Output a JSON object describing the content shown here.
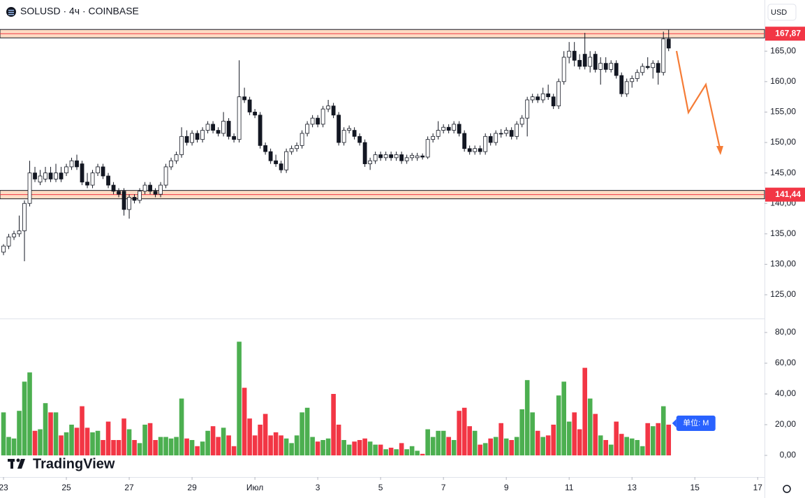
{
  "chart_data": {
    "type": "candlestick",
    "title": "SOLUSD · 4ч · COINBASE",
    "currency": "USD",
    "up_fill": "#ffffff",
    "down_fill": "#131722",
    "outline": "#131722",
    "volume_up_color": "#4caf50",
    "volume_down_color": "#f23645",
    "ohlc": [
      [
        132,
        133.3,
        131.5,
        133
      ],
      [
        133,
        135,
        132.5,
        134.5
      ],
      [
        134.5,
        135.5,
        134,
        135
      ],
      [
        135,
        138,
        134.5,
        135.5
      ],
      [
        135.5,
        140.5,
        130.5,
        140
      ],
      [
        140,
        147,
        139.5,
        145
      ],
      [
        145,
        146,
        143.5,
        144
      ],
      [
        143.5,
        145.5,
        143,
        144.5
      ],
      [
        144,
        146,
        143.5,
        145
      ],
      [
        145,
        146,
        143.5,
        144
      ],
      [
        144,
        146.5,
        143.5,
        145
      ],
      [
        145,
        146,
        143.5,
        144
      ],
      [
        145,
        146.5,
        144.5,
        146
      ],
      [
        146,
        147.5,
        145.5,
        147
      ],
      [
        147,
        148,
        145.5,
        146
      ],
      [
        146.5,
        147,
        143,
        143.5
      ],
      [
        143.5,
        145,
        142.5,
        143
      ],
      [
        143,
        145.5,
        142.5,
        145
      ],
      [
        145,
        146.5,
        144.5,
        146
      ],
      [
        146,
        146.5,
        144,
        144.5
      ],
      [
        144.5,
        145,
        142.5,
        143
      ],
      [
        143,
        143.5,
        141.5,
        142
      ],
      [
        142,
        142.5,
        141,
        141.5
      ],
      [
        142,
        142.5,
        138,
        139
      ],
      [
        139,
        141.5,
        137.5,
        141
      ],
      [
        141,
        141.5,
        140,
        140.5
      ],
      [
        140.5,
        142.5,
        140,
        142
      ],
      [
        142,
        143.5,
        141.5,
        143
      ],
      [
        143,
        143.5,
        141.5,
        142
      ],
      [
        142,
        142.5,
        141,
        141.5
      ],
      [
        141.5,
        143.5,
        141,
        143
      ],
      [
        143,
        146.5,
        142.5,
        146
      ],
      [
        146,
        147.5,
        145.5,
        147
      ],
      [
        147,
        148.5,
        146.5,
        148
      ],
      [
        148,
        152.5,
        147.5,
        151
      ],
      [
        151,
        152,
        149.5,
        150
      ],
      [
        150,
        152,
        149.5,
        151.5
      ],
      [
        151.5,
        152,
        150,
        150.5
      ],
      [
        150.5,
        152.5,
        150,
        152
      ],
      [
        152,
        153.5,
        151.5,
        153
      ],
      [
        153,
        153.5,
        151.5,
        152
      ],
      [
        152,
        152.5,
        151,
        151.5
      ],
      [
        151.5,
        155,
        151,
        153.5
      ],
      [
        153.5,
        154,
        150.5,
        151
      ],
      [
        151,
        151.5,
        150,
        150.5
      ],
      [
        150.5,
        163.5,
        150,
        157.5
      ],
      [
        157.5,
        159,
        156.5,
        157
      ],
      [
        157,
        157.5,
        154.5,
        155
      ],
      [
        155,
        155.5,
        154,
        154.5
      ],
      [
        154.5,
        155,
        149,
        149.5
      ],
      [
        149.5,
        150,
        148,
        148.5
      ],
      [
        148.5,
        149,
        146.5,
        147
      ],
      [
        147,
        148,
        146,
        146.5
      ],
      [
        146.5,
        147,
        145,
        145.5
      ],
      [
        145.5,
        149,
        145,
        148.5
      ],
      [
        148.5,
        149.5,
        148,
        149
      ],
      [
        149,
        150,
        148.5,
        149.5
      ],
      [
        149.5,
        152,
        149,
        151.5
      ],
      [
        151.5,
        153.5,
        151,
        153
      ],
      [
        153,
        154.5,
        152.5,
        154
      ],
      [
        154,
        154.5,
        152.5,
        153
      ],
      [
        153,
        156,
        152.5,
        155.5
      ],
      [
        155.5,
        157,
        155,
        156
      ],
      [
        156,
        156.5,
        154,
        154.5
      ],
      [
        154.5,
        155,
        149.5,
        150
      ],
      [
        150,
        152.5,
        149.5,
        152
      ],
      [
        152,
        152.8,
        151.5,
        152.3
      ],
      [
        152,
        152.5,
        150.5,
        151
      ],
      [
        151,
        151.5,
        149.5,
        150
      ],
      [
        150,
        150.5,
        146,
        146.5
      ],
      [
        146.5,
        147.5,
        145.5,
        147
      ],
      [
        147,
        148.5,
        146.5,
        148
      ],
      [
        148,
        148.5,
        147,
        147.5
      ],
      [
        147.5,
        148.5,
        147,
        148
      ],
      [
        148,
        148.5,
        147,
        147.5
      ],
      [
        147.5,
        148.5,
        147,
        148
      ],
      [
        148,
        148.5,
        146.5,
        147
      ],
      [
        147,
        148,
        146.5,
        147.5
      ],
      [
        147.5,
        148.3,
        147,
        147.9
      ],
      [
        147.5,
        148.3,
        147,
        147.8
      ],
      [
        147.8,
        148.2,
        147.2,
        147.6
      ],
      [
        147.6,
        151,
        147.3,
        150.5
      ],
      [
        150.5,
        151.5,
        150,
        151
      ],
      [
        151,
        153.5,
        150.5,
        152
      ],
      [
        152,
        153,
        151.5,
        152.5
      ],
      [
        152.5,
        153,
        151.5,
        152
      ],
      [
        152,
        153.5,
        151.5,
        153
      ],
      [
        153,
        153.5,
        151,
        151.5
      ],
      [
        151.5,
        152,
        148.5,
        149
      ],
      [
        149,
        149.5,
        148,
        148.5
      ],
      [
        148.5,
        149.5,
        148,
        149
      ],
      [
        149,
        149.5,
        148,
        148.5
      ],
      [
        148.5,
        151.5,
        148,
        151
      ],
      [
        151,
        151.5,
        149.5,
        150
      ],
      [
        150,
        152,
        149.5,
        151.5
      ],
      [
        151.5,
        152.2,
        150.8,
        151.4
      ],
      [
        151.5,
        152.5,
        151,
        152
      ],
      [
        152,
        152.5,
        150.5,
        151
      ],
      [
        151,
        153.5,
        150.5,
        153
      ],
      [
        153,
        154.5,
        152.5,
        154
      ],
      [
        154,
        157.5,
        151,
        157
      ],
      [
        157,
        158,
        156.5,
        157.5
      ],
      [
        157.5,
        158,
        156.5,
        157
      ],
      [
        157,
        159,
        156.5,
        158
      ],
      [
        158,
        159.5,
        157,
        157.5
      ],
      [
        157.5,
        158,
        155.5,
        156
      ],
      [
        156,
        160.5,
        155.5,
        160
      ],
      [
        160,
        165,
        159.5,
        164
      ],
      [
        164,
        166.5,
        163,
        165
      ],
      [
        165,
        166.5,
        162.5,
        163.5
      ],
      [
        163.5,
        164.5,
        162,
        162.5
      ],
      [
        164.5,
        168,
        162,
        162.5
      ],
      [
        162.5,
        165,
        161.5,
        164
      ],
      [
        164.5,
        165,
        161.5,
        162
      ],
      [
        162,
        164,
        159.5,
        163
      ],
      [
        163,
        164,
        161.5,
        162
      ],
      [
        162,
        163.5,
        161.5,
        163
      ],
      [
        163,
        163.5,
        160.5,
        161
      ],
      [
        161,
        161.5,
        157.5,
        158
      ],
      [
        158,
        160.5,
        157.5,
        160
      ],
      [
        160,
        161,
        159,
        160.5
      ],
      [
        160.5,
        162,
        160,
        161.5
      ],
      [
        161.5,
        163,
        161,
        162.5
      ],
      [
        162.5,
        164,
        162,
        162.3
      ],
      [
        162.3,
        163.5,
        160.5,
        163
      ],
      [
        163,
        163.5,
        159.5,
        161.5
      ],
      [
        161.5,
        168.2,
        161,
        167
      ],
      [
        167,
        168.5,
        165,
        165.5
      ]
    ],
    "volume": [
      28,
      12,
      11,
      29,
      48,
      54,
      16,
      17,
      34,
      28,
      28,
      13,
      15,
      20,
      18,
      32,
      18,
      15,
      16,
      10,
      22,
      10,
      10,
      24,
      17,
      10,
      8,
      20,
      21,
      10,
      12,
      12,
      11,
      12,
      37,
      11,
      10,
      6,
      9,
      16,
      19,
      12,
      18,
      13,
      6,
      74,
      44,
      24,
      13,
      20,
      27,
      13,
      15,
      13,
      11,
      8,
      13,
      28,
      31,
      12,
      9,
      10,
      11,
      40,
      20,
      10,
      7,
      9,
      10,
      11,
      9,
      7,
      7,
      4,
      5,
      4,
      8,
      4,
      6,
      3,
      1,
      17,
      12,
      16,
      16,
      12,
      10,
      29,
      31,
      19,
      16,
      7,
      8,
      11,
      12,
      21,
      11,
      10,
      12,
      30,
      49,
      28,
      16,
      12,
      13,
      20,
      39,
      48,
      22,
      28,
      17,
      57,
      37,
      27,
      13,
      10,
      7,
      22,
      14,
      12,
      11,
      10,
      6,
      21,
      19,
      21,
      32,
      20
    ],
    "volume_unit": "单位: M",
    "xlim": [
      -0.67,
      145.3
    ],
    "xticks": [
      {
        "value": 0,
        "label": "23"
      },
      {
        "value": 12,
        "label": "25"
      },
      {
        "value": 24,
        "label": "27"
      },
      {
        "value": 36,
        "label": "29"
      },
      {
        "value": 48,
        "label": "Июл"
      },
      {
        "value": 60,
        "label": "3"
      },
      {
        "value": 72,
        "label": "5"
      },
      {
        "value": 84,
        "label": "7"
      },
      {
        "value": 96,
        "label": "9"
      },
      {
        "value": 108,
        "label": "11"
      },
      {
        "value": 120,
        "label": "13"
      },
      {
        "value": 132,
        "label": "15"
      },
      {
        "value": 144,
        "label": "17"
      }
    ],
    "ylim": [
      121.1,
      173.4
    ],
    "yticks": [
      {
        "value": 125,
        "label": "125,00"
      },
      {
        "value": 130,
        "label": "130,00"
      },
      {
        "value": 135,
        "label": "135,00"
      },
      {
        "value": 140,
        "label": "140,00"
      },
      {
        "value": 145,
        "label": "145,00"
      },
      {
        "value": 150,
        "label": "150,00"
      },
      {
        "value": 155,
        "label": "155,00"
      },
      {
        "value": 160,
        "label": "160,00"
      },
      {
        "value": 165,
        "label": "165,00"
      }
    ],
    "volume_ylim": [
      -14.1,
      89.1
    ],
    "volume_yticks": [
      {
        "value": 0,
        "label": "0,00"
      },
      {
        "value": 20,
        "label": "20,00"
      },
      {
        "value": 40,
        "label": "40,00"
      },
      {
        "value": 60,
        "label": "60,00"
      },
      {
        "value": 80,
        "label": "80,00"
      }
    ],
    "levels": [
      {
        "value": 167.87,
        "label": "167,87"
      },
      {
        "value": 141.44,
        "label": "141,44"
      }
    ],
    "level_color": "#f23645",
    "level_band_color": "#fddcc4",
    "brand": "TradingView"
  }
}
